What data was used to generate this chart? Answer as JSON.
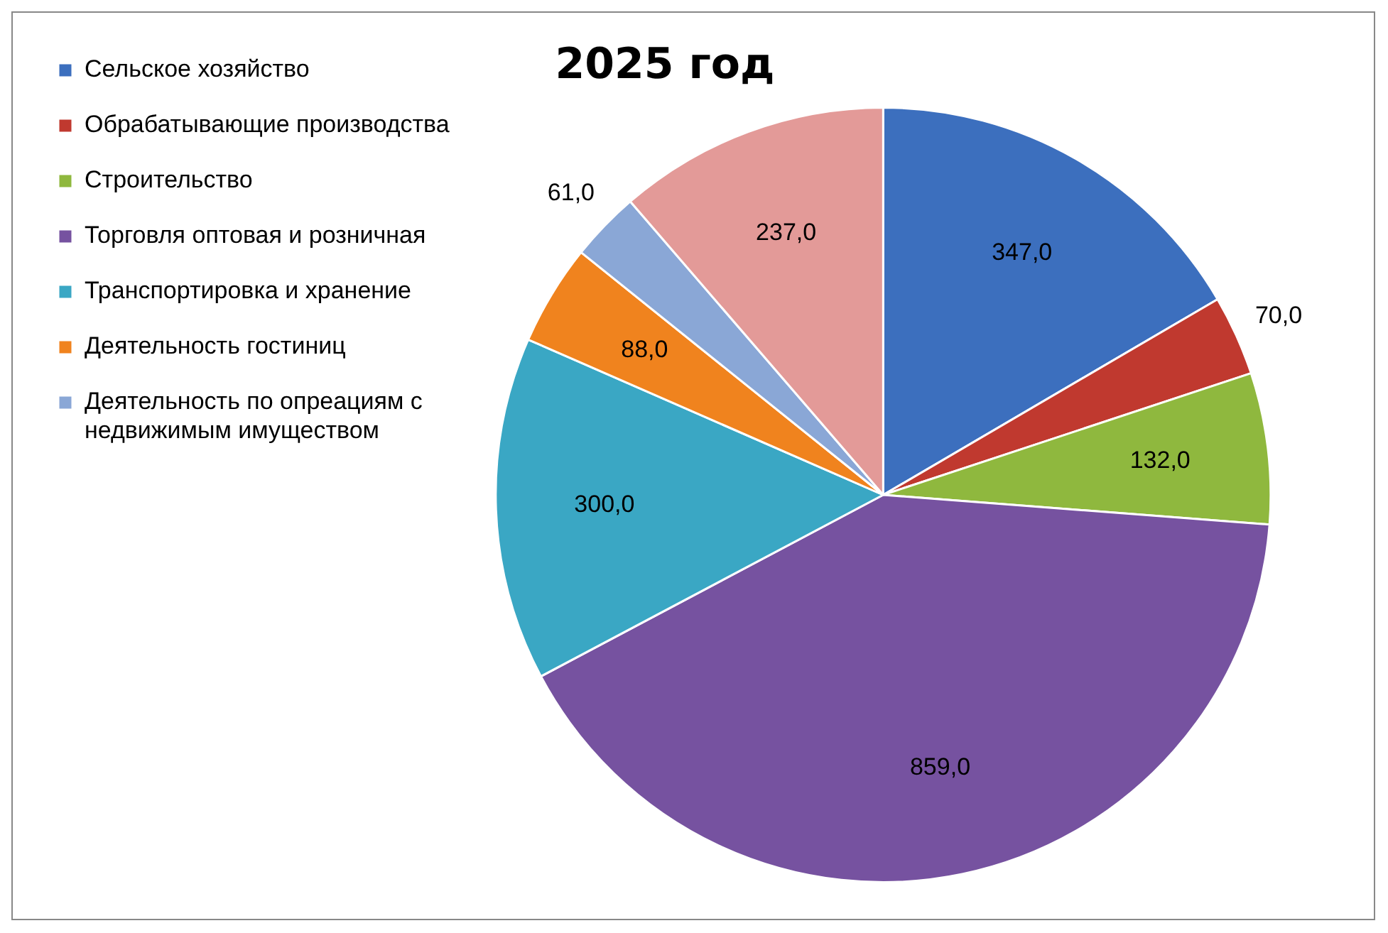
{
  "chart_data": {
    "type": "pie",
    "title": "2025 год",
    "categories": [
      "Сельское хозяйство",
      "Обрабатывающие производства",
      "Строительство",
      "Торговля оптовая и розничная",
      "Транспортировка и хранение",
      "Деятельность гостиниц",
      "Деятельность по опреациям с недвижимым имуществом",
      null
    ],
    "values": [
      347,
      70,
      132,
      859,
      300,
      88,
      61,
      237
    ],
    "value_labels": [
      "347,0",
      "70,0",
      "132,0",
      "859,0",
      "300,0",
      "88,0",
      "61,0",
      "237,0"
    ],
    "colors": [
      "#3c6fbe",
      "#c0392f",
      "#8fb83e",
      "#7652a0",
      "#3aa7c4",
      "#f0831e",
      "#8aa7d6",
      "#e39a98"
    ],
    "legend": "left"
  }
}
